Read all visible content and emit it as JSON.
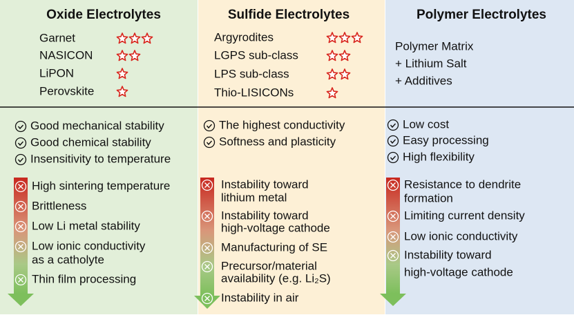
{
  "columns": [
    {
      "title": "Oxide Electrolytes",
      "materials": [
        {
          "name": "Garnet",
          "stars": 3
        },
        {
          "name": "NASICON",
          "stars": 2
        },
        {
          "name": "LiPON",
          "stars": 1
        },
        {
          "name": "Perovskite",
          "stars": 1
        }
      ],
      "pros": [
        "Good mechanical stability",
        "Good chemical stability",
        "Insensitivity to temperature"
      ],
      "cons": [
        {
          "lines": [
            "High sintering temperature"
          ]
        },
        {
          "lines": [
            "Brittleness"
          ]
        },
        {
          "lines": [
            "Low Li metal stability"
          ]
        },
        {
          "lines": [
            "Low ionic conductivity",
            "as a catholyte"
          ]
        },
        {
          "lines": [
            "Thin film processing"
          ]
        }
      ]
    },
    {
      "title": "Sulfide Electrolytes",
      "materials": [
        {
          "name": "Argyrodites",
          "stars": 3
        },
        {
          "name": "LGPS sub-class",
          "stars": 2
        },
        {
          "name": "LPS sub-class",
          "stars": 2
        },
        {
          "name": "Thio-LISICONs",
          "stars": 1
        }
      ],
      "pros": [
        "The highest conductivity",
        "Softness and plasticity"
      ],
      "cons": [
        {
          "lines": [
            "Instability toward",
            "lithium metal"
          ]
        },
        {
          "lines": [
            "Instability toward",
            "high-voltage cathode"
          ]
        },
        {
          "lines": [
            "Manufacturing of SE"
          ]
        },
        {
          "lines": [
            "Precursor/material",
            "availability (e.g. Li₂S)"
          ]
        },
        {
          "lines": [
            "Instability in air"
          ]
        }
      ]
    },
    {
      "title": "Polymer Electrolytes",
      "composition": [
        "Polymer Matrix",
        "+ Lithium Salt",
        "+ Additives"
      ],
      "pros": [
        "Low cost",
        "Easy processing",
        "High flexibility"
      ],
      "cons": [
        {
          "lines": [
            "Resistance to dendrite",
            "formation"
          ]
        },
        {
          "lines": [
            "Limiting current density"
          ]
        },
        {
          "lines": [
            "Low ionic conductivity"
          ]
        },
        {
          "lines": [
            "Instability toward",
            "high-voltage cathode"
          ]
        }
      ]
    }
  ]
}
